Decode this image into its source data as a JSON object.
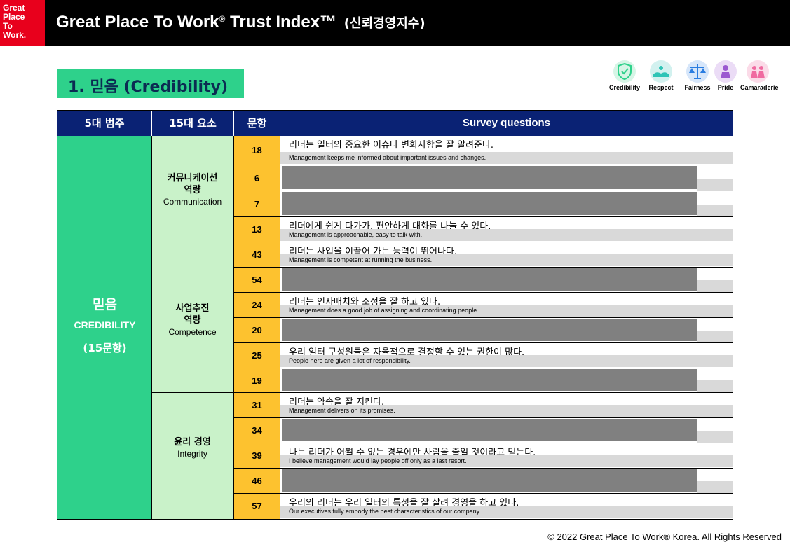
{
  "header": {
    "logo_lines": [
      "Great",
      "Place",
      "To",
      "Work."
    ],
    "title": "Great Place To Work",
    "title_reg": "®",
    "title_rest": "Trust Index™",
    "title_kor": "(신뢰경영지수)"
  },
  "section": {
    "title": "1. 믿음 (Credibility)"
  },
  "icons": [
    {
      "name": "credibility-icon",
      "label": "Credibility",
      "color": "#2ed18b"
    },
    {
      "name": "respect-icon",
      "label": "Respect",
      "color": "#2ec4b6"
    },
    {
      "name": "fairness-icon",
      "label": "Fairness",
      "color": "#2a7de1"
    },
    {
      "name": "pride-icon",
      "label": "Pride",
      "color": "#9b59d0"
    },
    {
      "name": "camaraderie-icon",
      "label": "Camaraderie",
      "color": "#f06aa0"
    }
  ],
  "table": {
    "headers": [
      "5대 범주",
      "15대 요소",
      "문항",
      "Survey questions"
    ],
    "category": {
      "ko": "믿음",
      "en": "CREDIBILITY",
      "count": "(15문항)"
    },
    "elements": [
      {
        "ko": "커뮤니케이션",
        "ko2": "역량",
        "en": "Communication"
      },
      {
        "ko": "사업추진",
        "ko2": "역량",
        "en": "Competence"
      },
      {
        "ko": "윤리 경영",
        "ko2": "",
        "en": "Integrity"
      }
    ],
    "rows": [
      {
        "num": "18",
        "ko": "리더는 일터의 중요한 이슈나 변화사항을 잘 알려준다.",
        "en": "Management keeps me informed about important issues and changes.",
        "redacted": false
      },
      {
        "num": "6",
        "ko": "",
        "en": "",
        "redacted": true
      },
      {
        "num": "7",
        "ko": "",
        "en": "",
        "redacted": true
      },
      {
        "num": "13",
        "ko": "리더에게 쉽게 다가가, 편안하게 대화를 나눌 수 있다.",
        "en": "Management is approachable, easy to talk with.",
        "redacted": false
      },
      {
        "num": "43",
        "ko": "리더는 사업을 이끌어 가는 능력이 뛰어나다.",
        "en": "Management is competent at running the business.",
        "redacted": false
      },
      {
        "num": "54",
        "ko": "",
        "en": "",
        "redacted": true
      },
      {
        "num": "24",
        "ko": "리더는 인사배치와 조정을 잘 하고 있다.",
        "en": "Management does a good job of assigning and coordinating people.",
        "redacted": false
      },
      {
        "num": "20",
        "ko": "",
        "en": "",
        "redacted": true
      },
      {
        "num": "25",
        "ko": "우리 일터 구성원들은 자율적으로 결정할 수 있는 권한이 많다.",
        "en": "People here are given a lot of responsibility.",
        "redacted": false
      },
      {
        "num": "19",
        "ko": "",
        "en": "",
        "redacted": true
      },
      {
        "num": "31",
        "ko": "리더는 약속을 잘 지킨다.",
        "en": "Management delivers on its promises.",
        "redacted": false
      },
      {
        "num": "34",
        "ko": "",
        "en": "",
        "redacted": true
      },
      {
        "num": "39",
        "ko": "나는 리더가 어쩔 수 없는 경우에만 사람을 줄일 것이라고 믿는다.",
        "en": "I believe management would lay people off only as a last resort.",
        "redacted": false
      },
      {
        "num": "46",
        "ko": "",
        "en": "",
        "redacted": true
      },
      {
        "num": "57",
        "ko": "우리의 리더는 우리 일터의 특성을 잘 살려 경영을 하고 있다.",
        "en": "Our executives fully embody the best characteristics of our company.",
        "redacted": false
      }
    ]
  },
  "footer": {
    "text": "© 2022 Great Place To Work® Korea. All Rights Reserved"
  }
}
